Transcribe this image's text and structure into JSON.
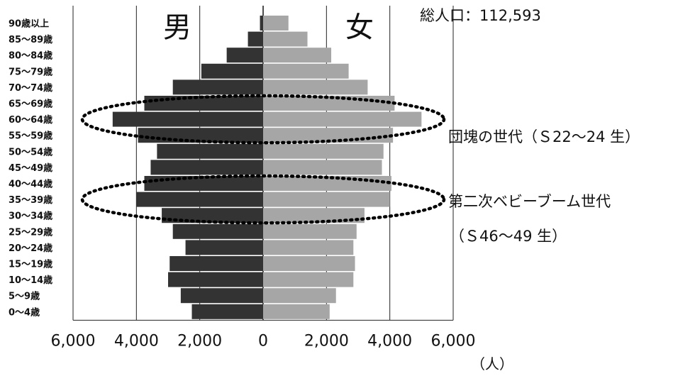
{
  "total_population_label": "総人口：112,593",
  "unit_label": "（人）",
  "chart_data": {
    "type": "bar",
    "orientation": "horizontal",
    "subtype": "population-pyramid",
    "categories": [
      "90歳以上",
      "85～89歳",
      "80～84歳",
      "75～79歳",
      "70～74歳",
      "65～69歳",
      "60～64歳",
      "55～59歳",
      "50～54歳",
      "45～49歳",
      "40～44歳",
      "35～39歳",
      "30～34歳",
      "25～29歳",
      "20～24歳",
      "15～19歳",
      "10～14歳",
      "5～9歳",
      "0～4歳"
    ],
    "series": [
      {
        "name": "男",
        "values": [
          100,
          480,
          1150,
          1950,
          2850,
          3750,
          4750,
          3950,
          3350,
          3550,
          3750,
          4000,
          3200,
          2850,
          2450,
          2950,
          3000,
          2600,
          2250
        ]
      },
      {
        "name": "女",
        "values": [
          800,
          1400,
          2150,
          2700,
          3300,
          4150,
          5000,
          4100,
          3800,
          3750,
          4050,
          4000,
          3200,
          2950,
          2850,
          2900,
          2850,
          2300,
          2100
        ]
      }
    ],
    "xticks": [
      "6,000",
      "4,000",
      "2,000",
      "0",
      "2,000",
      "4,000",
      "6,000"
    ],
    "xlim": [
      -6000,
      6000
    ],
    "colors": {
      "male": "#333333",
      "female": "#a6a6a6"
    },
    "annotations": [
      {
        "text": "団塊の世代（Ｓ22～24 生）",
        "groups": [
          "65～69歳",
          "60～64歳",
          "55～59歳"
        ]
      },
      {
        "text": "第二次ベビーブーム世代",
        "text2": "（Ｓ46～49 生）",
        "groups": [
          "40～44歳",
          "35～39歳",
          "30～34歳"
        ]
      }
    ]
  }
}
